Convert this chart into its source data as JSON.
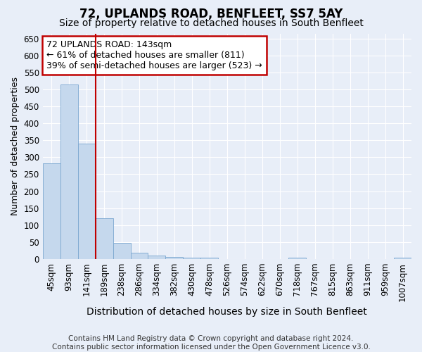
{
  "title": "72, UPLANDS ROAD, BENFLEET, SS7 5AY",
  "subtitle": "Size of property relative to detached houses in South Benfleet",
  "xlabel": "Distribution of detached houses by size in South Benfleet",
  "ylabel": "Number of detached properties",
  "categories": [
    "45sqm",
    "93sqm",
    "141sqm",
    "189sqm",
    "238sqm",
    "286sqm",
    "334sqm",
    "382sqm",
    "430sqm",
    "478sqm",
    "526sqm",
    "574sqm",
    "622sqm",
    "670sqm",
    "718sqm",
    "767sqm",
    "815sqm",
    "863sqm",
    "911sqm",
    "959sqm",
    "1007sqm"
  ],
  "values": [
    283,
    515,
    340,
    120,
    47,
    18,
    10,
    7,
    5,
    5,
    0,
    0,
    0,
    0,
    5,
    0,
    0,
    0,
    0,
    0,
    5
  ],
  "bar_color": "#c5d8ed",
  "bar_edge_color": "#7ba7d0",
  "marker_index": 2,
  "marker_color": "#c00000",
  "annotation_line1": "72 UPLANDS ROAD: 143sqm",
  "annotation_line2": "← 61% of detached houses are smaller (811)",
  "annotation_line3": "39% of semi-detached houses are larger (523) →",
  "annotation_box_facecolor": "#ffffff",
  "annotation_box_edgecolor": "#c00000",
  "ylim_max": 665,
  "yticks": [
    0,
    50,
    100,
    150,
    200,
    250,
    300,
    350,
    400,
    450,
    500,
    550,
    600,
    650
  ],
  "footer": "Contains HM Land Registry data © Crown copyright and database right 2024.\nContains public sector information licensed under the Open Government Licence v3.0.",
  "bg_color": "#e8eef8",
  "grid_color": "#ffffff",
  "title_fontsize": 12,
  "subtitle_fontsize": 10,
  "ylabel_fontsize": 9,
  "xlabel_fontsize": 10,
  "tick_fontsize": 8.5,
  "ann_fontsize": 9,
  "footer_fontsize": 7.5
}
